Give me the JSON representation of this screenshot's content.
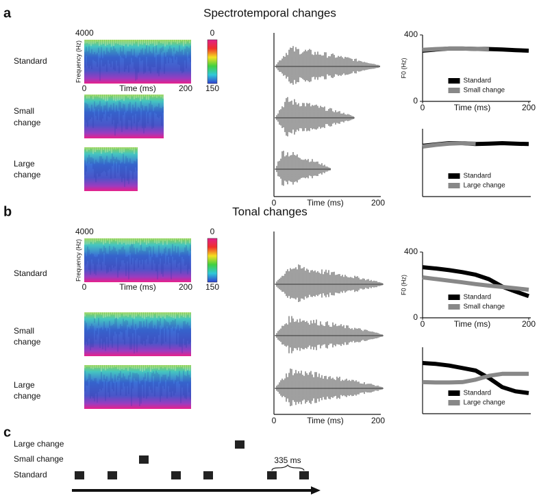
{
  "panels": [
    {
      "label": "a",
      "title": "Spectrotemporal changes",
      "rows": [
        [
          "Standard"
        ],
        [
          "Small",
          "change"
        ],
        [
          "Large",
          "change"
        ]
      ],
      "spectrogram": {
        "y_top": "4000",
        "y_label": "Frequency (Hz)",
        "x_start": "0",
        "x_end": "200",
        "x_label": "Time (ms)",
        "colorbar_top": "0",
        "colorbar_bottom": "150"
      },
      "waveform": {
        "x_start": "0",
        "x_end": "200",
        "x_label": "Time (ms)"
      }
    },
    {
      "label": "b",
      "title": "Tonal changes",
      "rows": [
        [
          "Standard"
        ],
        [
          "Small",
          "change"
        ],
        [
          "Large",
          "change"
        ]
      ],
      "spectrogram": {
        "y_top": "4000",
        "y_label": "Frequency (Hz)",
        "x_start": "0",
        "x_end": "200",
        "x_label": "Time (ms)",
        "colorbar_top": "0",
        "colorbar_bottom": "150"
      },
      "waveform": {
        "x_start": "0",
        "x_end": "200",
        "x_label": "Time (ms)"
      }
    },
    {
      "label": "c",
      "rows": [
        "Large change",
        "Small change",
        "Standard"
      ],
      "interval": "335 ms"
    }
  ],
  "chart_data": [
    {
      "type": "line",
      "x": [
        0,
        25,
        50,
        75,
        100,
        125,
        150,
        175,
        200
      ],
      "xlim": [
        0,
        200
      ],
      "ylim": [
        0,
        400
      ],
      "xticks": [
        0,
        200
      ],
      "yticks": [
        0,
        400
      ],
      "x_label": "Time (ms)",
      "y_label": "F0 (Hz)",
      "legend": "lower center",
      "series": [
        {
          "name": "Standard",
          "color": "#000000",
          "values": [
            305,
            312,
            318,
            318,
            316,
            315,
            312,
            308,
            305
          ]
        },
        {
          "name": "Small change",
          "color": "#888888",
          "values": [
            310,
            315,
            318,
            318,
            316,
            312,
            null,
            null,
            null
          ]
        }
      ]
    },
    {
      "type": "line",
      "x": [
        0,
        25,
        50,
        75,
        100,
        125,
        150,
        175,
        200
      ],
      "xlim": [
        0,
        200
      ],
      "ylim": [
        0,
        400
      ],
      "legend": "lower center",
      "series": [
        {
          "name": "Standard",
          "color": "#000000",
          "values": [
            300,
            308,
            315,
            315,
            310,
            312,
            315,
            312,
            310
          ]
        },
        {
          "name": "Large change",
          "color": "#888888",
          "values": [
            295,
            305,
            312,
            315,
            312,
            null,
            null,
            null,
            null
          ]
        }
      ]
    },
    {
      "type": "line",
      "x": [
        0,
        25,
        50,
        75,
        100,
        125,
        150,
        175,
        200
      ],
      "xlim": [
        0,
        200
      ],
      "ylim": [
        0,
        400
      ],
      "xticks": [
        0,
        200
      ],
      "yticks": [
        0,
        400
      ],
      "x_label": "Time (ms)",
      "y_label": "F0 (Hz)",
      "legend": "lower center",
      "series": [
        {
          "name": "Standard",
          "color": "#000000",
          "values": [
            308,
            300,
            290,
            278,
            262,
            235,
            190,
            160,
            132
          ]
        },
        {
          "name": "Small change",
          "color": "#888888",
          "values": [
            246,
            236,
            226,
            216,
            205,
            196,
            188,
            180,
            171
          ]
        }
      ]
    },
    {
      "type": "line",
      "x": [
        0,
        25,
        50,
        75,
        100,
        125,
        150,
        175,
        200
      ],
      "xlim": [
        0,
        200
      ],
      "ylim": [
        0,
        400
      ],
      "legend": "lower center",
      "series": [
        {
          "name": "Standard",
          "color": "#000000",
          "values": [
            305,
            300,
            290,
            275,
            260,
            215,
            160,
            135,
            124
          ]
        },
        {
          "name": "Large change",
          "color": "#888888",
          "values": [
            190,
            188,
            188,
            190,
            205,
            228,
            240,
            240,
            240
          ]
        }
      ]
    }
  ]
}
